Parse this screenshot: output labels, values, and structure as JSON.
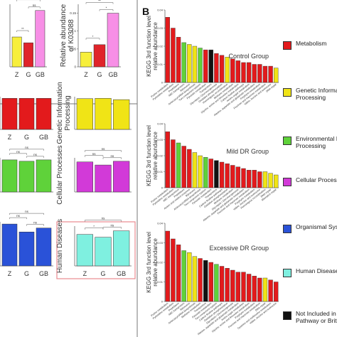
{
  "panel_letter": "B",
  "colors": {
    "metabolism": "#e31a1c",
    "genetic": "#f0e416",
    "environmental": "#5fd23a",
    "cellular": "#d23ad8",
    "organismal": "#2a52d8",
    "human": "#7ff0e0",
    "not_included": "#111111",
    "z_yellow": "#f7ef3b",
    "g_red": "#e0242a",
    "gb_pink": "#f78fe6",
    "box_red": "#e88a8f"
  },
  "legend": [
    {
      "key": "metabolism",
      "label": "Metabolism"
    },
    {
      "key": "genetic",
      "label": "Genetic Informati\nProcessing"
    },
    {
      "key": "environmental",
      "label": "Environmental Inf\nProcessing"
    },
    {
      "key": "cellular",
      "label": "Cellular Processes"
    },
    {
      "key": "organismal",
      "label": "Organismal Syster"
    },
    {
      "key": "human",
      "label": "Human Diseases"
    },
    {
      "key": "not_included",
      "label": "Not Included in\nPathway or Brite"
    }
  ],
  "chart_data": [
    {
      "type": "bar",
      "panel": "A-top-left",
      "categories": [
        "Z",
        "G",
        "GB"
      ],
      "values": [
        0.062,
        0.05,
        0.117
      ],
      "ylim": [
        0,
        0.13
      ],
      "ylabel": "",
      "significance": [
        "**",
        "**",
        "ns"
      ]
    },
    {
      "type": "bar",
      "panel": "A-top-right",
      "categories": [
        "Z",
        "G",
        "GB"
      ],
      "values": [
        0.041,
        0.062,
        0.15
      ],
      "ylim": [
        0,
        0.175
      ],
      "yticks": [
        0,
        0.05,
        0.1,
        0.15
      ],
      "ylabel": "Relative abundance\nof K03088",
      "significance": [
        "**",
        "*",
        "*"
      ]
    },
    {
      "type": "bar",
      "panel": "A-mid-left",
      "categories": [
        "Z",
        "G",
        "GB"
      ],
      "values": [
        0.95,
        0.95,
        0.95
      ],
      "ylim": [
        0,
        1
      ],
      "ylabel": ""
    },
    {
      "type": "bar",
      "panel": "A-mid-right",
      "categories": [
        "",
        "",
        ""
      ],
      "values": [
        0.94,
        0.95,
        0.91
      ],
      "ylim": [
        0,
        1
      ],
      "ylabel": "Genetic Information\nProcessing"
    },
    {
      "type": "bar",
      "panel": "A-mid2-left",
      "categories": [
        "",
        "",
        ""
      ],
      "values": [
        0.94,
        0.9,
        0.94
      ],
      "ylim": [
        0,
        1
      ],
      "ylabel": "",
      "significance": [
        "ns",
        "ns",
        "ns"
      ]
    },
    {
      "type": "bar",
      "panel": "A-mid2-right",
      "categories": [
        "",
        "",
        ""
      ],
      "values": [
        0.88,
        0.79,
        0.9
      ],
      "ylim": [
        0,
        1
      ],
      "ylabel": "Cellular Processes",
      "significance": [
        "ns",
        "ns",
        "ns"
      ]
    },
    {
      "type": "bar",
      "panel": "A-bottom-left",
      "categories": [
        "Z",
        "G",
        "GB"
      ],
      "values": [
        0.95,
        0.77,
        0.86
      ],
      "ylim": [
        0,
        1
      ],
      "ylabel": "",
      "significance": [
        "ns",
        "ns",
        "ns"
      ]
    },
    {
      "type": "bar",
      "panel": "A-bottom-right",
      "categories": [
        "Z",
        "G",
        "GB"
      ],
      "values": [
        0.79,
        0.72,
        0.88
      ],
      "ylim": [
        0,
        1
      ],
      "ylabel": "Human Diseases",
      "significance": [
        "ns",
        "*",
        "ns"
      ]
    },
    {
      "type": "bar",
      "panel": "B-control",
      "title": "Control Group",
      "ylabel": "KEGG 3rd function level\nrelative abundance",
      "ylim": [
        0,
        0.04
      ],
      "yticks": [
        0,
        0.01,
        0.02,
        0.03,
        0.04
      ],
      "categories": [
        "Purine metabolism",
        "Pyrimidine metabolism",
        "Peptidases",
        "ABC transporters",
        "Ribosome",
        "Aminoacyl-tRNA biosynthesis",
        "Two-component system",
        "Pyruvate metabolism",
        "Transporters",
        "Glycolysis / Gluconeogenesis",
        "Oxidative phosphorylation",
        "Homologous recombination",
        "Methane metabolism",
        "Glycine, serine and threonine metabolism",
        "Carbon fixation pathways",
        "Amino sugar metabolism",
        "Alanine, aspartate and glutamate metabolism",
        "Porphyrin metabolism",
        "Fructose and mannose metabolism",
        "Valine, leucine and isoleucine",
        "DNA repair"
      ],
      "values": [
        0.036,
        0.03,
        0.025,
        0.022,
        0.021,
        0.02,
        0.019,
        0.018,
        0.018,
        0.016,
        0.015,
        0.014,
        0.013,
        0.012,
        0.011,
        0.011,
        0.01,
        0.01,
        0.009,
        0.009,
        0.008
      ],
      "groups": [
        "metabolism",
        "metabolism",
        "metabolism",
        "environmental",
        "genetic",
        "genetic",
        "environmental",
        "metabolism",
        "not_included",
        "metabolism",
        "metabolism",
        "genetic",
        "metabolism",
        "metabolism",
        "metabolism",
        "metabolism",
        "metabolism",
        "metabolism",
        "metabolism",
        "metabolism",
        "genetic"
      ]
    },
    {
      "type": "bar",
      "panel": "B-mild",
      "title": "Mild DR Group",
      "ylabel": "KEGG 3rd function level\nrelative abundance",
      "ylim": [
        0,
        0.04
      ],
      "yticks": [
        0,
        0.01,
        0.02,
        0.03,
        0.04
      ],
      "categories": [
        "Purine metabolism",
        "Pyrimidine metabolism",
        "ABC transporters",
        "Peptidases",
        "Amino acid related enzymes",
        "Ribosome",
        "Aminoacyl-tRNA biosynthesis",
        "Two-component system",
        "Pyruvate metabolism",
        "Transporters",
        "Carbon fixation pathways",
        "Oxidative phosphorylation",
        "Methane metabolism",
        "Glycolysis / Gluconeogenesis",
        "Alanine, aspartate and glutamate metabolism",
        "Fructose and mannose metabolism",
        "Porphyrin metabolism",
        "Valine, leucine and isoleucine",
        "Homologous recombination",
        "DNA repair",
        "Mismatch repair"
      ],
      "values": [
        0.035,
        0.03,
        0.028,
        0.026,
        0.024,
        0.022,
        0.02,
        0.019,
        0.018,
        0.017,
        0.016,
        0.015,
        0.014,
        0.013,
        0.012,
        0.011,
        0.011,
        0.01,
        0.01,
        0.009,
        0.008
      ],
      "groups": [
        "metabolism",
        "metabolism",
        "environmental",
        "metabolism",
        "metabolism",
        "genetic",
        "genetic",
        "environmental",
        "metabolism",
        "not_included",
        "metabolism",
        "metabolism",
        "metabolism",
        "metabolism",
        "metabolism",
        "metabolism",
        "metabolism",
        "metabolism",
        "genetic",
        "genetic",
        "genetic"
      ]
    },
    {
      "type": "bar",
      "panel": "B-excessive",
      "title": "Excessive DR Group",
      "ylabel": "KEGG 3rd function level\nrelative abundance",
      "ylim": [
        0,
        0.04
      ],
      "yticks": [
        0,
        0.01,
        0.02,
        0.03,
        0.04
      ],
      "categories": [
        "Purine metabolism",
        "Pyrimidine metabolism",
        "Peptidases",
        "ABC transporters",
        "Ribosome",
        "Aminoacyl-tRNA biosynthesis",
        "Methane metabolism",
        "Transporters",
        "Pyruvate metabolism",
        "Two-component system",
        "Carbon fixation pathways",
        "Oxidative phosphorylation",
        "Glycolysis / Gluconeogenesis",
        "Alanine, aspartate and glutamate metabolism",
        "Amino sugar metabolism",
        "Glycine, serine and threonine metabolism",
        "Porphyrin metabolism",
        "Fructose and mannose metabolism",
        "DNA repair",
        "Cysteine and methionine metabolism",
        "Valine, leucine and isoleucine"
      ],
      "values": [
        0.036,
        0.032,
        0.029,
        0.026,
        0.025,
        0.023,
        0.022,
        0.021,
        0.02,
        0.019,
        0.018,
        0.017,
        0.016,
        0.015,
        0.015,
        0.014,
        0.013,
        0.012,
        0.012,
        0.011,
        0.01
      ],
      "groups": [
        "metabolism",
        "metabolism",
        "metabolism",
        "environmental",
        "genetic",
        "genetic",
        "metabolism",
        "not_included",
        "metabolism",
        "environmental",
        "metabolism",
        "metabolism",
        "metabolism",
        "metabolism",
        "metabolism",
        "metabolism",
        "metabolism",
        "metabolism",
        "genetic",
        "metabolism",
        "metabolism"
      ]
    }
  ]
}
